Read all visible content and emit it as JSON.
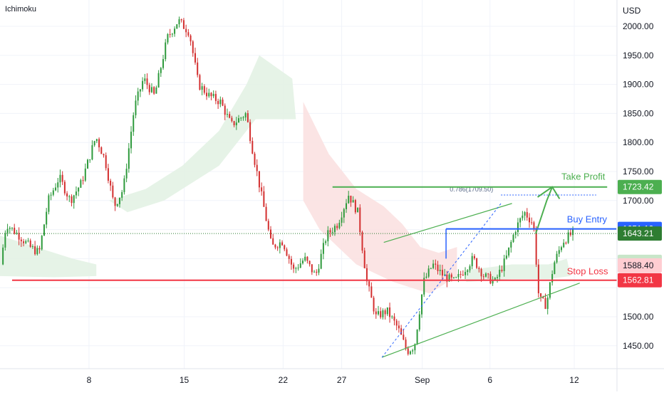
{
  "indicator_label": "Ichimoku",
  "currency_label": "USD",
  "colors": {
    "up": "#26a69a",
    "up_body": "#2e9a3c",
    "down": "#d32f2f",
    "grid": "#f0f3fa",
    "axis_text": "#131722",
    "cloud_bull": "#e3f2e4",
    "cloud_bear": "#fbe1e1",
    "take_profit": "#4caf50",
    "buy_entry": "#2962ff",
    "stop_loss": "#f23645",
    "current_price": "#2e7d32",
    "fib": "#2962ff",
    "gray_tag": "#787b86"
  },
  "chart_data": {
    "type": "candlestick",
    "y_axis": {
      "ticks": [
        2000,
        1950,
        1900,
        1850,
        1800,
        1750,
        1700,
        1650,
        1600,
        1550,
        1500,
        1450
      ],
      "tick_labels": [
        "2000.00",
        "1950.00",
        "1900.00",
        "1850.00",
        "1800.00",
        "1750.00",
        "1700.00",
        "1650.00",
        "",
        "",
        "1500.00",
        "1450.00"
      ],
      "range": [
        1428,
        2045
      ]
    },
    "x_axis": {
      "ticks": [
        "8",
        "15",
        "22",
        "27",
        "Sep",
        "6",
        "12"
      ],
      "range_days": [
        0,
        34
      ]
    },
    "candles_anchor_points": [
      {
        "t": 0.2,
        "p": 1590
      },
      {
        "t": 0.5,
        "p": 1660
      },
      {
        "t": 1.2,
        "p": 1640
      },
      {
        "t": 1.8,
        "p": 1620
      },
      {
        "t": 2.3,
        "p": 1610
      },
      {
        "t": 2.8,
        "p": 1700
      },
      {
        "t": 3.4,
        "p": 1740
      },
      {
        "t": 4.0,
        "p": 1700
      },
      {
        "t": 4.6,
        "p": 1730
      },
      {
        "t": 5.4,
        "p": 1810
      },
      {
        "t": 5.9,
        "p": 1770
      },
      {
        "t": 6.4,
        "p": 1690
      },
      {
        "t": 6.9,
        "p": 1720
      },
      {
        "t": 7.5,
        "p": 1860
      },
      {
        "t": 8.0,
        "p": 1910
      },
      {
        "t": 8.6,
        "p": 1880
      },
      {
        "t": 9.3,
        "p": 1980
      },
      {
        "t": 9.9,
        "p": 2010
      },
      {
        "t": 10.5,
        "p": 1990
      },
      {
        "t": 11.0,
        "p": 1900
      },
      {
        "t": 11.6,
        "p": 1880
      },
      {
        "t": 12.2,
        "p": 1870
      },
      {
        "t": 12.8,
        "p": 1830
      },
      {
        "t": 13.6,
        "p": 1850
      },
      {
        "t": 14.0,
        "p": 1780
      },
      {
        "t": 14.5,
        "p": 1700
      },
      {
        "t": 15.0,
        "p": 1620
      },
      {
        "t": 15.6,
        "p": 1630
      },
      {
        "t": 16.2,
        "p": 1580
      },
      {
        "t": 16.8,
        "p": 1600
      },
      {
        "t": 17.4,
        "p": 1570
      },
      {
        "t": 18.0,
        "p": 1640
      },
      {
        "t": 18.6,
        "p": 1660
      },
      {
        "t": 19.2,
        "p": 1710
      },
      {
        "t": 19.7,
        "p": 1680
      },
      {
        "t": 20.2,
        "p": 1560
      },
      {
        "t": 20.7,
        "p": 1500
      },
      {
        "t": 21.3,
        "p": 1510
      },
      {
        "t": 21.9,
        "p": 1480
      },
      {
        "t": 22.4,
        "p": 1440
      },
      {
        "t": 22.8,
        "p": 1450
      },
      {
        "t": 23.3,
        "p": 1560
      },
      {
        "t": 23.8,
        "p": 1590
      },
      {
        "t": 24.4,
        "p": 1570
      },
      {
        "t": 25.0,
        "p": 1560
      },
      {
        "t": 25.5,
        "p": 1580
      },
      {
        "t": 26.0,
        "p": 1600
      },
      {
        "t": 26.6,
        "p": 1570
      },
      {
        "t": 27.2,
        "p": 1560
      },
      {
        "t": 27.8,
        "p": 1600
      },
      {
        "t": 28.3,
        "p": 1650
      },
      {
        "t": 28.8,
        "p": 1680
      },
      {
        "t": 29.3,
        "p": 1660
      },
      {
        "t": 29.6,
        "p": 1530
      },
      {
        "t": 30.0,
        "p": 1520
      },
      {
        "t": 30.4,
        "p": 1590
      },
      {
        "t": 30.9,
        "p": 1630
      },
      {
        "t": 31.4,
        "p": 1643
      }
    ],
    "levels": {
      "take_profit": {
        "label": "Take Profit",
        "price": 1723.42,
        "tag": "1723.42"
      },
      "buy_entry": {
        "label": "Buy Entry",
        "price": 1651.19,
        "tag": "1651.19"
      },
      "stop_loss": {
        "label": "Stop Loss",
        "price": 1562.81,
        "tag": "1562.81"
      },
      "current_price": {
        "price": 1643.21,
        "tag": "1643.21"
      },
      "cloud_tag_upper": {
        "price": 1594.46,
        "tag": "1594.46"
      },
      "cloud_tag_lower": {
        "price": 1588.4,
        "tag": "1588.40"
      }
    },
    "fib_label": "0.786(1709.50)",
    "fib_price": 1709.5
  }
}
